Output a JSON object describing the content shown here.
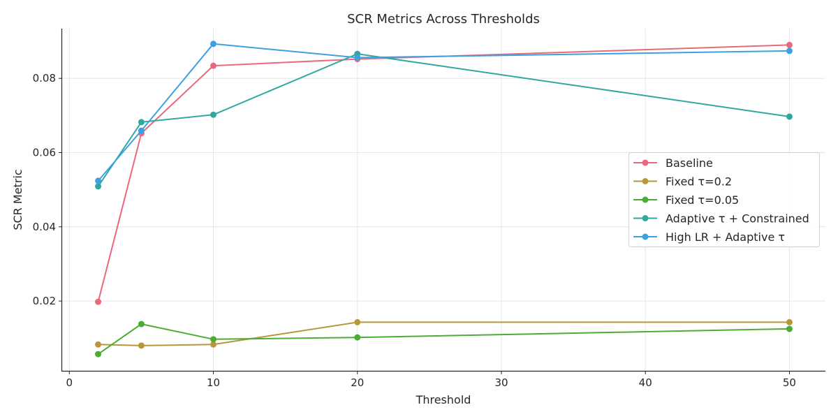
{
  "chart_data": {
    "type": "line",
    "title": "SCR Metrics Across Thresholds",
    "xlabel": "Threshold",
    "ylabel": "SCR Metric",
    "x": [
      2,
      5,
      10,
      20,
      50
    ],
    "xlim": [
      -0.5,
      52.5
    ],
    "ylim": [
      0.0012,
      0.0934
    ],
    "xticks": [
      0,
      10,
      20,
      30,
      40,
      50
    ],
    "yticks": [
      0.02,
      0.04,
      0.06,
      0.08
    ],
    "xtick_labels": [
      "0",
      "10",
      "20",
      "30",
      "40",
      "50"
    ],
    "ytick_labels": [
      "0.02",
      "0.04",
      "0.06",
      "0.08"
    ],
    "grid": true,
    "legend_position": "center-right",
    "series": [
      {
        "name": "Baseline",
        "color": "#e8697f",
        "values": [
          0.0198,
          0.0652,
          0.0834,
          0.0852,
          0.089
        ]
      },
      {
        "name": "Fixed τ=0.2",
        "color": "#b8973a",
        "values": [
          0.0083,
          0.008,
          0.0083,
          0.0143,
          0.0143
        ]
      },
      {
        "name": "Fixed τ=0.05",
        "color": "#4cad35",
        "values": [
          0.0057,
          0.0138,
          0.0097,
          0.0102,
          0.0125
        ]
      },
      {
        "name": "Adaptive τ + Constrained",
        "color": "#31a89f",
        "values": [
          0.0509,
          0.0682,
          0.0702,
          0.0866,
          0.0697
        ]
      },
      {
        "name": "High LR + Adaptive τ",
        "color": "#3ca1e0",
        "values": [
          0.0524,
          0.0659,
          0.0893,
          0.0856,
          0.0874
        ]
      }
    ]
  }
}
